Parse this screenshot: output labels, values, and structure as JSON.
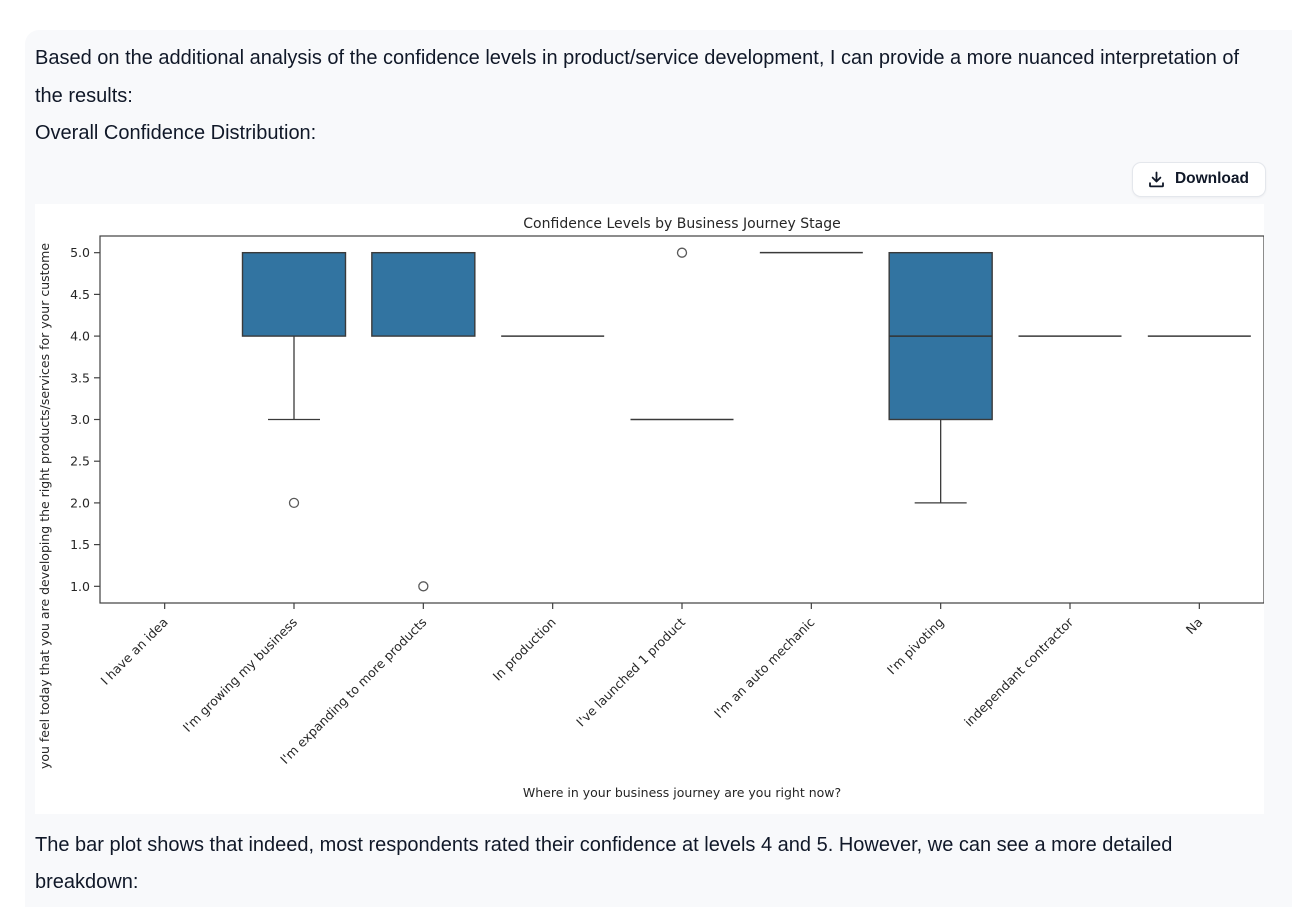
{
  "messages": {
    "intro": "Based on the additional analysis of the confidence levels in product/service development, I can provide a more nuanced interpretation of the results:",
    "subheading": "Overall Confidence Distribution:",
    "closing": "The bar plot shows that indeed, most respondents rated their confidence at levels 4 and 5. However, we can see a more detailed breakdown:"
  },
  "download": {
    "label": "Download",
    "icon": "download-icon"
  },
  "colors": {
    "box_fill": "#3274a1",
    "box_edge": "#3a3a3a",
    "spine": "#404040",
    "outlier": "#595959",
    "panel_bg": "#f8f9fb",
    "figure_bg": "#ffffff",
    "body_text": "#101828",
    "chart_text": "#262626"
  },
  "chart_data": {
    "type": "boxplot",
    "title": "Confidence Levels by Business Journey Stage",
    "xlabel": "Where in your business journey are you right now?",
    "ylabel": "you feel today that you are developing the right products/services for your custome",
    "ylim": [
      0.8,
      5.2
    ],
    "yticks": [
      1.0,
      1.5,
      2.0,
      2.5,
      3.0,
      3.5,
      4.0,
      4.5,
      5.0
    ],
    "grid": false,
    "legend": null,
    "categories": [
      "I have an idea",
      "I'm growing my business",
      "I'm expanding to more products",
      "In production",
      "I've launched 1 product",
      "I'm an auto mechanic",
      "I'm pivoting",
      "independant contractor",
      "Na"
    ],
    "boxes": [
      {
        "type": "none",
        "outliers": []
      },
      {
        "type": "box",
        "q1": 4,
        "q3": 5,
        "median": null,
        "whisker_low": 3,
        "whisker_high": 5,
        "outliers": [
          2
        ]
      },
      {
        "type": "box",
        "q1": 4,
        "q3": 5,
        "median": null,
        "whisker_low": 4,
        "whisker_high": 5,
        "outliers": [
          1
        ]
      },
      {
        "type": "line",
        "value": 4,
        "outliers": []
      },
      {
        "type": "line",
        "value": 3,
        "outliers": [
          5
        ]
      },
      {
        "type": "line",
        "value": 5,
        "outliers": []
      },
      {
        "type": "box",
        "q1": 3,
        "q3": 5,
        "median": 4,
        "whisker_low": 2,
        "whisker_high": 5,
        "outliers": []
      },
      {
        "type": "line",
        "value": 4,
        "outliers": []
      },
      {
        "type": "line",
        "value": 4,
        "outliers": []
      }
    ]
  }
}
